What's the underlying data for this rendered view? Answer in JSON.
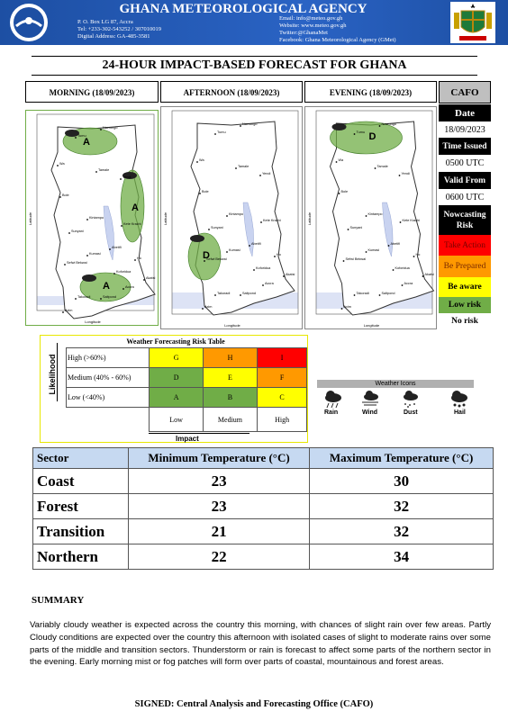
{
  "header": {
    "agency": "GHANA METEOROLOGICAL AGENCY",
    "address": [
      "P. O. Box LG 87, Accra",
      "Tel: +233-302-543252 / 307010019",
      "Digital Address: GA-485-3581"
    ],
    "contacts": [
      "Email: info@meteo.gov.gh",
      "Website: www.meteo.gov.gh",
      "Twitter:@GhanaMet",
      "Facebook: Ghana Meteorological Agency (GMet)"
    ]
  },
  "title": "24-HOUR IMPACT-BASED FORECAST FOR GHANA",
  "panels": [
    {
      "label": "MORNING (18/09/2023)",
      "zones": [
        "A",
        "A",
        "A"
      ]
    },
    {
      "label": "AFTERNOON (18/09/2023)",
      "zones": [
        "D"
      ]
    },
    {
      "label": "EVENING (18/09/2023)",
      "zones": [
        "D"
      ]
    }
  ],
  "map_cities": [
    "Navrongo",
    "Tumu",
    "Wa",
    "Tamale",
    "Bole",
    "Yendi",
    "Kintampo",
    "Sunyani",
    "Kete Krachi",
    "Kumasi",
    "Abetifi",
    "Koforidua",
    "Sefwi Bekwai",
    "Ho",
    "Takoradi",
    "Saltpond",
    "Accra",
    "Axim",
    "Akatsi"
  ],
  "map_axis_labels": {
    "x": "Longitude",
    "y": "Latitude"
  },
  "cafo": {
    "title": "CAFO",
    "date_label": "Date",
    "date": "18/09/2023",
    "issued_label": "Time Issued",
    "issued": "0500 UTC",
    "valid_label": "Valid From",
    "valid": "0600 UTC",
    "risk_label": "Nowcasting Risk",
    "levels": [
      "Take Action",
      "Be Prepared",
      "Be aware",
      "Low risk",
      "No risk"
    ]
  },
  "risk_table": {
    "title": "Weather Forecasting Risk Table",
    "y_label": "Likelihood",
    "x_label": "Impact",
    "rows": [
      {
        "label": "High (>60%)",
        "cells": [
          "G",
          "H",
          "I"
        ]
      },
      {
        "label": "Medium (40% - 60%)",
        "cells": [
          "D",
          "E",
          "F"
        ]
      },
      {
        "label": "Low (<40%)",
        "cells": [
          "A",
          "B",
          "C"
        ]
      }
    ],
    "columns": [
      "Low",
      "Medium",
      "High"
    ]
  },
  "weather_icons": {
    "title": "Weather Icons",
    "items": [
      "Rain",
      "Wind",
      "Dust",
      "Hail"
    ]
  },
  "temperature_table": {
    "header": [
      "Sector",
      "Minimum Temperature (°C)",
      "Maximum Temperature (°C)"
    ],
    "rows": [
      [
        "Coast",
        23,
        30
      ],
      [
        "Forest",
        23,
        32
      ],
      [
        "Transition",
        21,
        32
      ],
      [
        "Northern",
        22,
        34
      ]
    ]
  },
  "summary": {
    "heading": "SUMMARY",
    "text": "Variably cloudy weather is expected across the country this morning, with chances of slight rain over few areas. Partly Cloudy conditions are expected over the country this afternoon with isolated cases of slight to moderate rains over some parts of the middle and transition sectors. Thunderstorm or rain is forecast to affect some parts of the northern sector in the evening. Early morning mist or fog patches will form over parts of coastal, mountainous and forest areas.",
    "signed": "SIGNED: Central Analysis and Forecasting Office (CAFO)"
  }
}
